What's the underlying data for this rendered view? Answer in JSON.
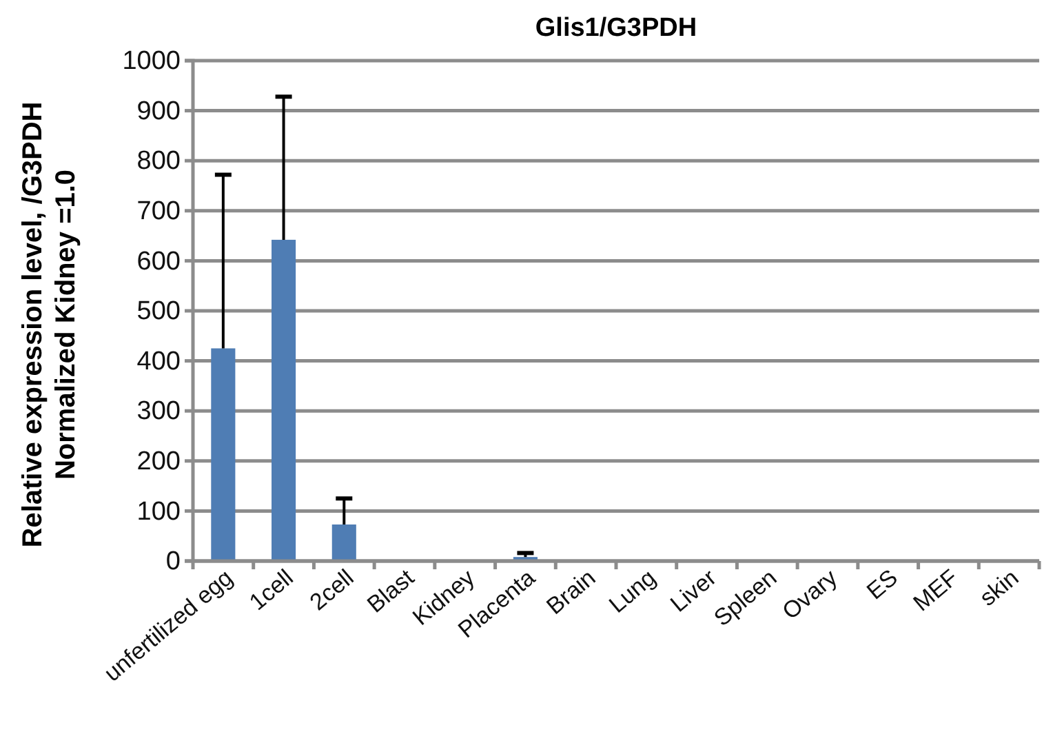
{
  "chart_data": {
    "type": "bar",
    "title": "Glis1/G3PDH",
    "ylabel": "Relative expression level, /G3PDH\nNormalized Kidney =1.0",
    "categories": [
      "unfertilized egg",
      "1cell",
      "2cell",
      "Blast",
      "Kidney",
      "Placenta",
      "Brain",
      "Lung",
      "Liver",
      "Spleen",
      "Ovary",
      "ES",
      "MEF",
      "skin"
    ],
    "values": [
      425,
      642,
      73,
      2,
      1,
      8,
      2,
      2,
      2,
      2,
      2,
      2,
      2,
      2
    ],
    "errors": [
      [
        425,
        772
      ],
      [
        642,
        928
      ],
      [
        73,
        125
      ],
      null,
      null,
      [
        8,
        16
      ],
      null,
      null,
      null,
      null,
      null,
      null,
      null,
      null
    ],
    "color": "#4f7db4",
    "ylim": [
      0,
      1000
    ],
    "yticks": [
      0,
      100,
      200,
      300,
      400,
      500,
      600,
      700,
      800,
      900,
      1000
    ],
    "grid": "y"
  }
}
